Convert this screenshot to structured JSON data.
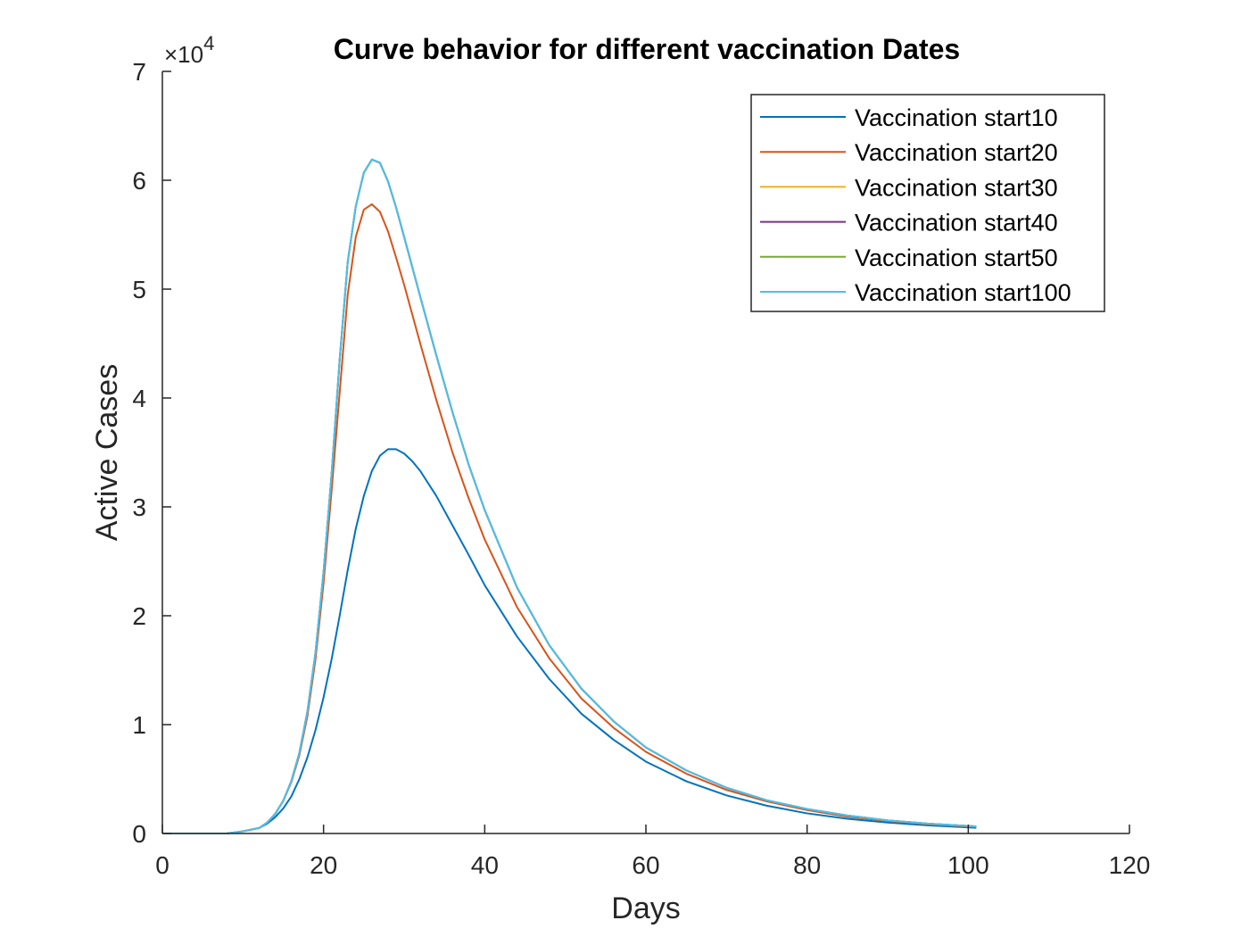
{
  "chart_data": {
    "type": "line",
    "title": "Curve behavior for different vaccination Dates",
    "xlabel": "Days",
    "ylabel": "Active Cases",
    "y_exponent_label": "×10",
    "y_exponent_power": "4",
    "xlim": [
      0,
      120
    ],
    "ylim": [
      0,
      70000
    ],
    "x_ticks": [
      0,
      20,
      40,
      60,
      80,
      100,
      120
    ],
    "x_tick_labels": [
      "0",
      "20",
      "40",
      "60",
      "80",
      "100",
      "120"
    ],
    "y_ticks": [
      0,
      10000,
      20000,
      30000,
      40000,
      50000,
      60000,
      70000
    ],
    "y_tick_labels": [
      "0",
      "1",
      "2",
      "3",
      "4",
      "5",
      "6",
      "7"
    ],
    "grid": false,
    "legend_position": "top-right",
    "series": [
      {
        "name": "Vaccination start10",
        "color": "#0072BD",
        "x": [
          0,
          5,
          8,
          10,
          12,
          13,
          14,
          15,
          16,
          17,
          18,
          19,
          20,
          21,
          22,
          23,
          24,
          25,
          26,
          27,
          28,
          29,
          30,
          31,
          32,
          34,
          36,
          38,
          40,
          44,
          48,
          52,
          56,
          60,
          65,
          70,
          75,
          80,
          85,
          90,
          95,
          101
        ],
        "y": [
          0,
          0,
          0,
          200,
          500,
          900,
          1500,
          2300,
          3400,
          5000,
          7000,
          9500,
          12500,
          16000,
          20000,
          24200,
          28000,
          31000,
          33300,
          34700,
          35300,
          35300,
          34900,
          34200,
          33300,
          31000,
          28300,
          25600,
          22800,
          18100,
          14200,
          11000,
          8600,
          6600,
          4800,
          3500,
          2550,
          1850,
          1350,
          1000,
          750,
          520
        ]
      },
      {
        "name": "Vaccination start20",
        "color": "#D95319",
        "x": [
          0,
          5,
          8,
          10,
          12,
          13,
          14,
          15,
          16,
          17,
          18,
          19,
          20,
          21,
          22,
          23,
          24,
          25,
          26,
          27,
          28,
          29,
          30,
          32,
          34,
          36,
          38,
          40,
          44,
          48,
          52,
          56,
          60,
          65,
          70,
          75,
          80,
          85,
          90,
          95,
          101
        ],
        "y": [
          0,
          0,
          0,
          200,
          500,
          1000,
          1800,
          3000,
          4700,
          7200,
          10800,
          16000,
          23000,
          31500,
          40500,
          49500,
          54800,
          57300,
          57800,
          57100,
          55300,
          52900,
          50400,
          45000,
          39800,
          35000,
          30800,
          27000,
          20800,
          16100,
          12400,
          9700,
          7500,
          5500,
          4000,
          2950,
          2150,
          1550,
          1150,
          850,
          600
        ]
      },
      {
        "name": "Vaccination start30",
        "color": "#EDB120",
        "x": [
          0,
          5,
          8,
          10,
          12,
          13,
          14,
          15,
          16,
          17,
          18,
          19,
          20,
          21,
          22,
          23,
          24,
          25,
          26,
          27,
          28,
          29,
          30,
          32,
          34,
          36,
          38,
          40,
          44,
          48,
          52,
          56,
          60,
          65,
          70,
          75,
          80,
          85,
          90,
          95,
          101
        ],
        "y": [
          0,
          0,
          0,
          200,
          500,
          1000,
          1800,
          3000,
          4800,
          7400,
          11200,
          16600,
          24000,
          33000,
          43500,
          52500,
          57600,
          60700,
          61900,
          61600,
          59900,
          57500,
          54800,
          49300,
          43900,
          38700,
          33900,
          29700,
          22600,
          17300,
          13300,
          10300,
          7900,
          5800,
          4200,
          3050,
          2250,
          1650,
          1200,
          900,
          650
        ]
      },
      {
        "name": "Vaccination start40",
        "color": "#7E2F8E",
        "x": [
          0,
          5,
          8,
          10,
          12,
          13,
          14,
          15,
          16,
          17,
          18,
          19,
          20,
          21,
          22,
          23,
          24,
          25,
          26,
          27,
          28,
          29,
          30,
          32,
          34,
          36,
          38,
          40,
          44,
          48,
          52,
          56,
          60,
          65,
          70,
          75,
          80,
          85,
          90,
          95,
          101
        ],
        "y": [
          0,
          0,
          0,
          200,
          500,
          1000,
          1800,
          3000,
          4800,
          7400,
          11200,
          16600,
          24000,
          33000,
          43500,
          52500,
          57600,
          60700,
          61900,
          61600,
          59900,
          57500,
          54800,
          49300,
          43900,
          38700,
          33900,
          29700,
          22600,
          17300,
          13300,
          10300,
          7900,
          5800,
          4200,
          3050,
          2250,
          1650,
          1200,
          900,
          650
        ]
      },
      {
        "name": "Vaccination start50",
        "color": "#77AC30",
        "x": [
          0,
          5,
          8,
          10,
          12,
          13,
          14,
          15,
          16,
          17,
          18,
          19,
          20,
          21,
          22,
          23,
          24,
          25,
          26,
          27,
          28,
          29,
          30,
          32,
          34,
          36,
          38,
          40,
          44,
          48,
          52,
          56,
          60,
          65,
          70,
          75,
          80,
          85,
          90,
          95,
          101
        ],
        "y": [
          0,
          0,
          0,
          200,
          500,
          1000,
          1800,
          3000,
          4800,
          7400,
          11200,
          16600,
          24000,
          33000,
          43500,
          52500,
          57600,
          60700,
          61900,
          61600,
          59900,
          57500,
          54800,
          49300,
          43900,
          38700,
          33900,
          29700,
          22600,
          17300,
          13300,
          10300,
          7900,
          5800,
          4200,
          3050,
          2250,
          1650,
          1200,
          900,
          650
        ]
      },
      {
        "name": "Vaccination start100",
        "color": "#4DBEEE",
        "x": [
          0,
          5,
          8,
          10,
          12,
          13,
          14,
          15,
          16,
          17,
          18,
          19,
          20,
          21,
          22,
          23,
          24,
          25,
          26,
          27,
          28,
          29,
          30,
          32,
          34,
          36,
          38,
          40,
          44,
          48,
          52,
          56,
          60,
          65,
          70,
          75,
          80,
          85,
          90,
          95,
          101
        ],
        "y": [
          0,
          0,
          0,
          200,
          500,
          1000,
          1800,
          3000,
          4800,
          7400,
          11200,
          16600,
          24000,
          33000,
          43500,
          52500,
          57600,
          60700,
          61900,
          61600,
          59900,
          57500,
          54800,
          49300,
          43900,
          38700,
          33900,
          29700,
          22600,
          17300,
          13300,
          10300,
          7900,
          5800,
          4200,
          3050,
          2250,
          1650,
          1200,
          900,
          650
        ]
      }
    ]
  }
}
